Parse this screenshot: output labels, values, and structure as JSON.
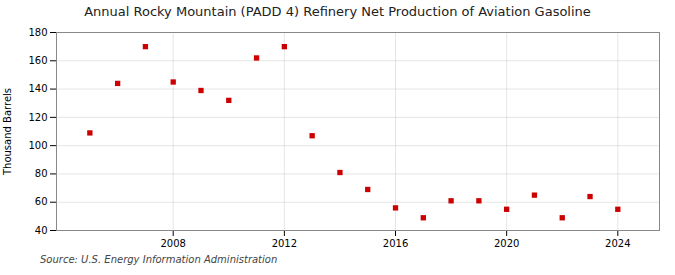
{
  "chart_data": {
    "type": "scatter",
    "title": "Annual Rocky Mountain (PADD 4) Refinery Net Production of Aviation Gasoline",
    "ylabel": "Thousand Barrels",
    "source": "Source: U.S. Energy Information Administration",
    "x": [
      2005,
      2006,
      2007,
      2008,
      2009,
      2010,
      2011,
      2012,
      2013,
      2014,
      2015,
      2016,
      2017,
      2018,
      2019,
      2020,
      2021,
      2022,
      2023,
      2024
    ],
    "values": [
      109,
      144,
      170,
      145,
      139,
      132,
      162,
      170,
      107,
      81,
      69,
      56,
      49,
      61,
      61,
      55,
      65,
      49,
      64,
      55
    ],
    "color": "#cc0000",
    "marker": "square",
    "xlim": [
      2003.8,
      2025.5
    ],
    "xticks": [
      2008,
      2012,
      2016,
      2020,
      2024
    ],
    "ylim": [
      40,
      180
    ],
    "yticks": [
      40,
      60,
      80,
      100,
      120,
      140,
      160,
      180
    ],
    "grid": true
  }
}
